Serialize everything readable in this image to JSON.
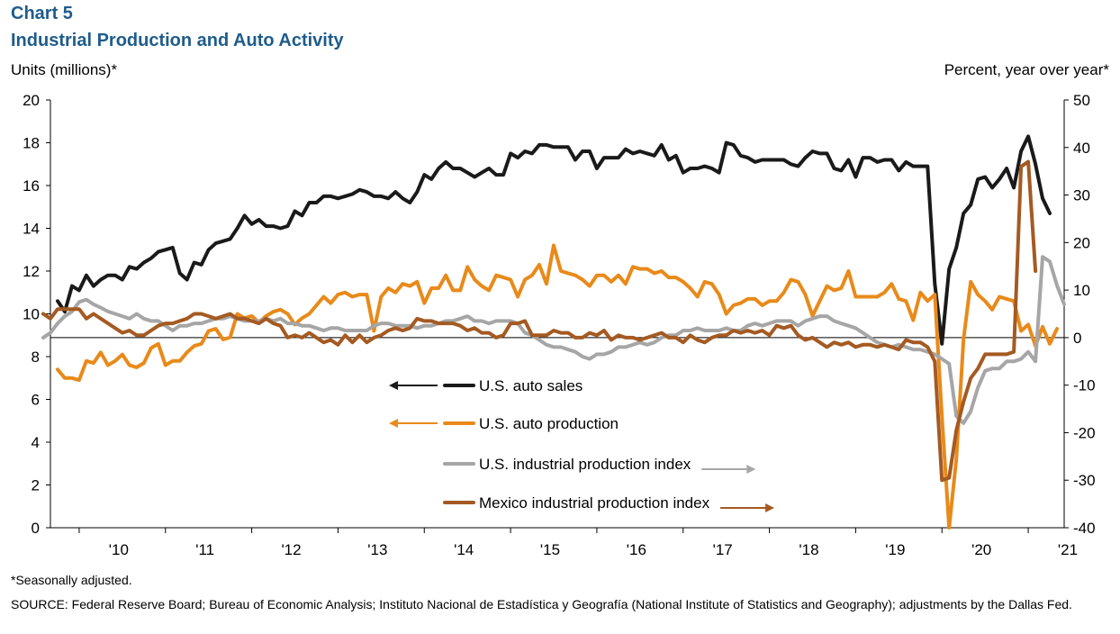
{
  "header": {
    "title": "Chart 5",
    "subtitle": "Industrial Production and Auto Activity"
  },
  "axes": {
    "left_unit": "Units (millions)*",
    "right_unit": "Percent, year over year*"
  },
  "notes": {
    "footnote": "*Seasonally adjusted.",
    "source": "SOURCE: Federal Reserve Board; Bureau of Economic Analysis; Instituto Nacional de Estadística y Geografía (National Institute of Statistics and Geography); adjustments by the Dallas Fed."
  },
  "chart_data": {
    "type": "line",
    "title": "Industrial Production and Auto Activity",
    "x_tick_labels": [
      "'10",
      "'11",
      "'12",
      "'13",
      "'14",
      "'15",
      "'16",
      "'17",
      "'18",
      "'19",
      "'20",
      "'21"
    ],
    "x_range": [
      "2009-09",
      "2021-06"
    ],
    "left_axis": {
      "label": "Units (millions)*",
      "range": [
        0,
        20
      ],
      "ticks": [
        0,
        2,
        4,
        6,
        8,
        10,
        12,
        14,
        16,
        18,
        20
      ]
    },
    "right_axis": {
      "label": "Percent, year over year*",
      "range": [
        -40,
        50
      ],
      "ticks": [
        -40,
        -30,
        -20,
        -10,
        0,
        10,
        20,
        30,
        40,
        50
      ]
    },
    "grid": false,
    "legend_placement": "center-left, inside plot",
    "series": [
      {
        "name": "U.S. auto sales",
        "axis": "left",
        "color": "#1a1a1a",
        "start": "2009-10",
        "values": [
          10.6,
          10.1,
          11.3,
          11.1,
          11.8,
          11.3,
          11.6,
          11.8,
          11.8,
          11.6,
          12.2,
          12.1,
          12.4,
          12.6,
          12.9,
          13.0,
          13.1,
          11.9,
          11.6,
          12.4,
          12.3,
          13.0,
          13.3,
          13.4,
          13.5,
          14.0,
          14.6,
          14.2,
          14.4,
          14.1,
          14.1,
          14.0,
          14.1,
          14.8,
          14.6,
          15.2,
          15.2,
          15.5,
          15.5,
          15.4,
          15.5,
          15.6,
          15.8,
          15.7,
          15.5,
          15.5,
          15.4,
          15.7,
          15.4,
          15.2,
          15.7,
          16.5,
          16.3,
          16.8,
          17.1,
          16.8,
          16.8,
          16.6,
          16.4,
          16.6,
          16.8,
          16.5,
          16.5,
          17.5,
          17.3,
          17.6,
          17.5,
          17.9,
          17.9,
          17.8,
          17.8,
          17.8,
          17.2,
          17.6,
          17.6,
          16.8,
          17.3,
          17.3,
          17.3,
          17.7,
          17.5,
          17.6,
          17.5,
          17.4,
          17.9,
          17.2,
          17.4,
          16.6,
          16.8,
          16.8,
          16.9,
          16.8,
          16.6,
          18.0,
          17.9,
          17.4,
          17.3,
          17.1,
          17.2,
          17.2,
          17.2,
          17.2,
          17.0,
          16.9,
          17.3,
          17.6,
          17.5,
          17.5,
          16.8,
          16.7,
          17.2,
          16.4,
          17.3,
          17.3,
          17.1,
          17.2,
          17.2,
          16.7,
          17.1,
          16.9,
          16.9,
          16.9,
          11.4,
          8.6,
          12.1,
          13.1,
          14.7,
          15.1,
          16.3,
          16.4,
          15.9,
          16.3,
          16.8,
          15.9,
          17.6,
          18.3,
          17.0,
          15.4,
          14.7
        ]
      },
      {
        "name": "U.S. auto production",
        "axis": "left",
        "color": "#e88a1a",
        "start": "2009-10",
        "values": [
          7.4,
          7.0,
          7.0,
          6.9,
          7.8,
          7.7,
          8.2,
          7.6,
          7.8,
          8.1,
          7.6,
          7.5,
          7.7,
          8.4,
          8.6,
          7.6,
          7.8,
          7.8,
          8.2,
          8.5,
          8.6,
          9.2,
          9.3,
          8.8,
          8.9,
          10.0,
          9.8,
          9.9,
          9.6,
          9.9,
          10.1,
          10.2,
          10.0,
          9.5,
          9.8,
          10.0,
          10.4,
          10.8,
          10.5,
          10.9,
          11.0,
          10.8,
          10.9,
          10.9,
          9.2,
          10.8,
          11.2,
          11.0,
          11.4,
          11.3,
          11.5,
          10.5,
          11.2,
          11.2,
          11.8,
          11.1,
          11.1,
          12.2,
          11.6,
          11.3,
          11.1,
          11.8,
          11.7,
          11.6,
          10.8,
          11.6,
          11.8,
          12.3,
          11.4,
          13.2,
          12.0,
          11.9,
          11.8,
          11.6,
          11.3,
          11.8,
          11.8,
          11.5,
          11.8,
          11.4,
          12.2,
          12.1,
          12.1,
          11.9,
          12.0,
          11.7,
          11.7,
          11.5,
          11.2,
          10.8,
          11.5,
          11.4,
          10.9,
          10.0,
          10.4,
          10.5,
          10.7,
          10.7,
          10.4,
          10.6,
          10.6,
          11.0,
          11.6,
          11.5,
          10.9,
          9.9,
          10.6,
          11.3,
          11.1,
          11.2,
          12.0,
          10.8,
          10.8,
          10.8,
          10.8,
          11.0,
          11.4,
          10.7,
          10.6,
          9.7,
          11.0,
          10.6,
          10.9,
          5.2,
          0.0,
          3.2,
          8.8,
          11.5,
          10.9,
          10.6,
          10.2,
          10.8,
          10.7,
          10.6,
          9.2,
          9.5,
          8.5,
          9.4,
          8.6,
          9.3
        ]
      },
      {
        "name": "U.S. industrial production index",
        "axis": "right",
        "color": "#a6a6a6",
        "start": "2009-08",
        "values": [
          0.0,
          1.0,
          3.0,
          4.5,
          5.5,
          7.5,
          8.0,
          7.0,
          6.3,
          5.5,
          5.0,
          4.5,
          4.0,
          5.0,
          4.0,
          3.5,
          3.5,
          2.5,
          1.5,
          2.5,
          2.5,
          3.0,
          3.0,
          3.5,
          4.0,
          4.0,
          4.5,
          4.0,
          3.5,
          3.5,
          3.5,
          4.0,
          3.5,
          4.0,
          3.0,
          3.0,
          2.5,
          2.5,
          2.0,
          1.5,
          2.0,
          2.0,
          1.5,
          1.5,
          1.5,
          1.5,
          2.5,
          3.0,
          3.0,
          2.5,
          2.5,
          2.5,
          2.0,
          2.5,
          2.5,
          3.0,
          3.5,
          3.5,
          4.0,
          4.5,
          3.5,
          3.5,
          3.0,
          3.5,
          3.5,
          3.5,
          3.0,
          1.0,
          0.5,
          -0.5,
          -1.5,
          -2.0,
          -2.0,
          -2.5,
          -3.0,
          -4.0,
          -4.5,
          -3.5,
          -3.5,
          -3.0,
          -2.0,
          -2.0,
          -1.5,
          -1.0,
          -1.5,
          -1.0,
          0.0,
          0.5,
          0.5,
          1.5,
          1.5,
          2.0,
          1.5,
          1.5,
          1.5,
          2.0,
          1.5,
          1.5,
          2.5,
          3.0,
          2.5,
          3.0,
          3.5,
          3.5,
          3.5,
          2.5,
          3.5,
          4.0,
          4.5,
          4.5,
          3.5,
          3.0,
          2.5,
          2.0,
          1.0,
          0.0,
          -1.0,
          -1.5,
          -2.0,
          -1.5,
          -2.0,
          -2.5,
          -2.5,
          -3.0,
          -3.5,
          -4.5,
          -5.5,
          -16.5,
          -18.0,
          -15.5,
          -10.5,
          -7.0,
          -6.5,
          -6.5,
          -5.0,
          -5.0,
          -4.5,
          -3.0,
          -5.0,
          17.0,
          16.0,
          11.0,
          7.0
        ]
      },
      {
        "name": "Mexico industrial production index",
        "axis": "right",
        "color": "#a45a22",
        "start": "2009-08",
        "values": [
          5.0,
          4.0,
          6.0,
          6.0,
          6.0,
          6.0,
          4.0,
          5.0,
          4.0,
          3.0,
          2.0,
          1.0,
          1.5,
          0.5,
          0.5,
          1.5,
          2.5,
          3.0,
          3.0,
          3.5,
          4.0,
          5.0,
          5.0,
          4.5,
          4.0,
          4.5,
          5.0,
          4.0,
          4.0,
          3.5,
          3.0,
          4.0,
          3.0,
          2.5,
          0.0,
          0.5,
          0.0,
          1.0,
          0.0,
          -1.0,
          -0.5,
          -1.5,
          0.5,
          -1.0,
          0.5,
          -1.0,
          0.0,
          0.5,
          1.5,
          2.0,
          1.5,
          2.0,
          4.0,
          3.5,
          3.5,
          3.0,
          3.0,
          3.0,
          2.5,
          1.5,
          2.0,
          1.0,
          1.0,
          0.0,
          0.5,
          3.0,
          3.0,
          3.5,
          0.5,
          0.5,
          0.5,
          1.5,
          1.0,
          1.0,
          0.0,
          0.0,
          1.0,
          0.5,
          1.5,
          -0.5,
          0.5,
          0.0,
          0.0,
          -0.5,
          0.0,
          0.5,
          1.0,
          0.0,
          0.0,
          -1.0,
          0.5,
          -0.5,
          -1.0,
          0.0,
          0.5,
          0.5,
          1.5,
          1.0,
          1.5,
          1.0,
          1.5,
          0.5,
          2.5,
          2.0,
          2.5,
          0.5,
          -0.5,
          0.0,
          -1.0,
          -2.0,
          -1.0,
          -1.5,
          -1.0,
          -2.0,
          -1.5,
          -1.5,
          -2.0,
          -1.5,
          -2.0,
          -2.5,
          -0.5,
          -1.0,
          -1.0,
          -2.0,
          -5.0,
          -30.0,
          -29.5,
          -19.5,
          -13.5,
          -8.5,
          -6.5,
          -3.5,
          -3.5,
          -3.5,
          -3.5,
          -3.0,
          36.0,
          37.0,
          14.0
        ]
      }
    ],
    "legend": [
      {
        "label": "U.S. auto sales",
        "arrow": "left"
      },
      {
        "label": "U.S. auto production",
        "arrow": "left"
      },
      {
        "label": "U.S. industrial production index",
        "arrow": "right"
      },
      {
        "label": "Mexico industrial production index",
        "arrow": "right"
      }
    ]
  }
}
